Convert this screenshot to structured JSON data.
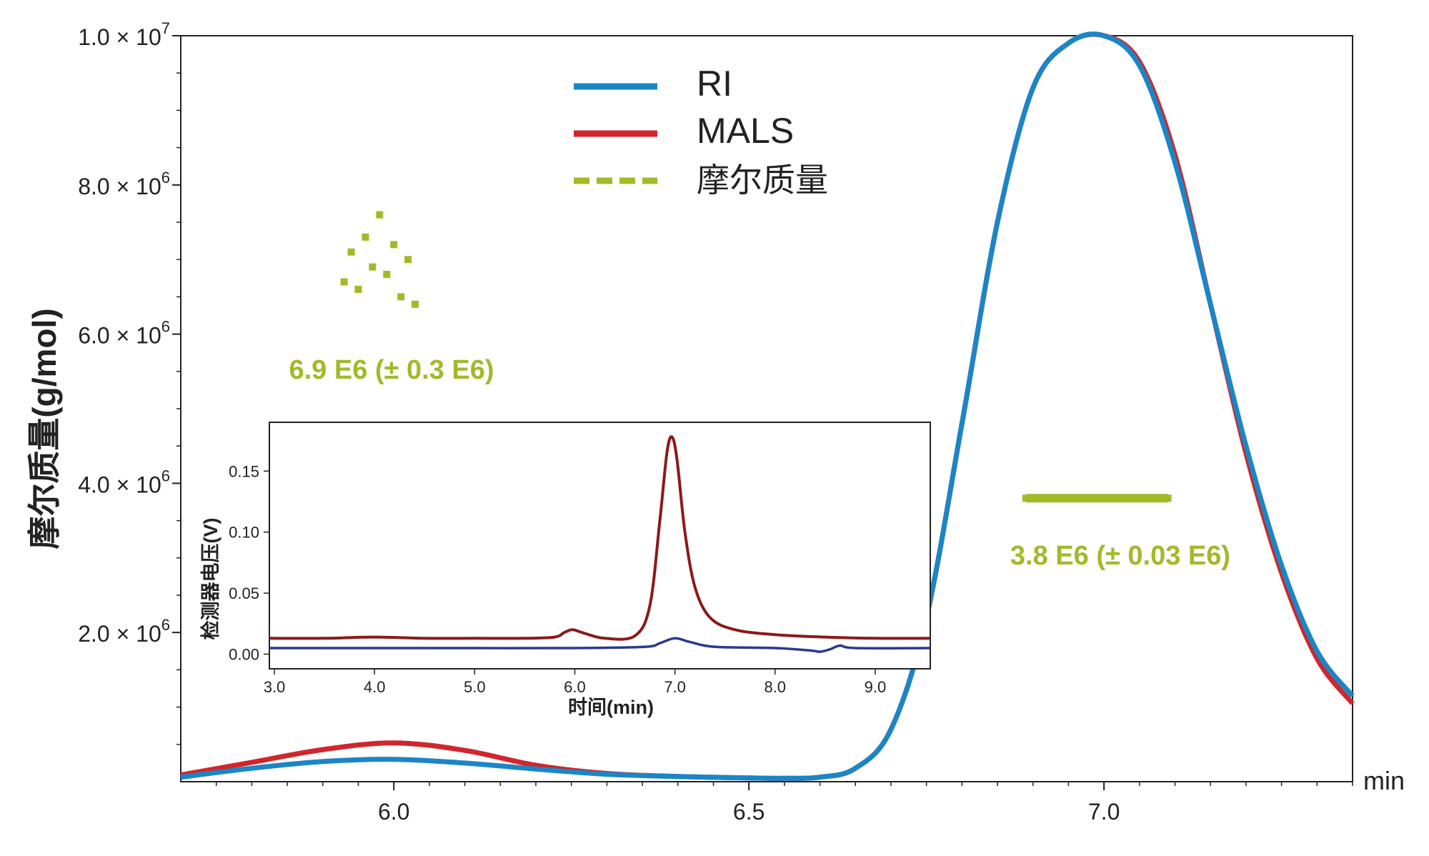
{
  "chart_data": [
    {
      "type": "line",
      "ylabel": "摩尔质量(g/mol)",
      "xunit": "min",
      "xlim": [
        5.7,
        7.35
      ],
      "ylim": [
        0,
        10000000
      ],
      "x_ticks": [
        {
          "value": 6.0,
          "label": "6.0"
        },
        {
          "value": 6.5,
          "label": "6.5"
        },
        {
          "value": 7.0,
          "label": "7.0"
        }
      ],
      "y_ticks": [
        {
          "value": 2000000,
          "mantissa": "2.0",
          "times": "×",
          "base": "10",
          "exp": "6"
        },
        {
          "value": 4000000,
          "mantissa": "4.0",
          "times": "×",
          "base": "10",
          "exp": "6"
        },
        {
          "value": 6000000,
          "mantissa": "6.0",
          "times": "×",
          "base": "10",
          "exp": "6"
        },
        {
          "value": 8000000,
          "mantissa": "8.0",
          "times": "×",
          "base": "10",
          "exp": "6"
        },
        {
          "value": 10000000,
          "mantissa": "1.0",
          "times": "×",
          "base": "10",
          "exp": "7"
        }
      ],
      "legend": [
        {
          "name": "RI",
          "color": "#1b86c6",
          "style": "solid"
        },
        {
          "name": "MALS",
          "color": "#d0262b",
          "style": "solid"
        },
        {
          "name": "摩尔质量",
          "color": "#a3b92a",
          "style": "dashed"
        }
      ],
      "series": [
        {
          "name": "RI",
          "color": "#1b86c6",
          "x": [
            5.7,
            5.8,
            5.9,
            6.0,
            6.1,
            6.2,
            6.3,
            6.4,
            6.5,
            6.55,
            6.6,
            6.65,
            6.7,
            6.75,
            6.8,
            6.85,
            6.9,
            6.95,
            7.0,
            7.05,
            7.1,
            7.15,
            7.2,
            7.25,
            7.3,
            7.35
          ],
          "y": [
            60000,
            180000,
            270000,
            300000,
            250000,
            170000,
            100000,
            70000,
            50000,
            45000,
            60000,
            180000,
            700000,
            2200000,
            4800000,
            7500000,
            9300000,
            9900000,
            10000000,
            9600000,
            8300000,
            6400000,
            4500000,
            2900000,
            1750000,
            1150000
          ]
        },
        {
          "name": "MALS",
          "color": "#d0262b",
          "x": [
            5.7,
            5.8,
            5.9,
            6.0,
            6.1,
            6.2,
            6.3,
            6.4,
            6.5,
            6.55,
            6.6,
            6.65,
            6.7,
            6.75,
            6.8,
            6.85,
            6.9,
            6.95,
            7.0,
            7.05,
            7.1,
            7.15,
            7.2,
            7.25,
            7.3,
            7.35
          ],
          "y": [
            90000,
            260000,
            430000,
            520000,
            420000,
            220000,
            110000,
            70000,
            50000,
            45000,
            60000,
            180000,
            700000,
            2200000,
            4800000,
            7500000,
            9300000,
            9900000,
            10000000,
            9650000,
            8400000,
            6400000,
            4400000,
            2800000,
            1650000,
            1050000
          ]
        }
      ],
      "molar_mass_points": [
        {
          "x": [
            5.93,
            5.94,
            5.95,
            5.96,
            5.97,
            5.98,
            5.99,
            6.0,
            6.01,
            6.02,
            6.03
          ],
          "y": [
            6700000.0,
            7100000.0,
            6600000.0,
            7300000.0,
            6900000.0,
            7600000.0,
            6800000.0,
            7200000.0,
            6500000.0,
            7000000.0,
            6400000.0
          ]
        },
        {
          "x": [
            6.89,
            6.94,
            6.99,
            7.04,
            7.09
          ],
          "y": [
            3800000.0,
            3800000.0,
            3800000.0,
            3800000.0,
            3800000.0
          ]
        }
      ],
      "annotations": [
        {
          "text": "6.9 E6 (± 0.3 E6)",
          "x": 5.95,
          "y": 5600000
        },
        {
          "text": "3.8 E6 (± 0.03 E6)",
          "x": 7.02,
          "y": 3000000
        }
      ]
    },
    {
      "type": "line",
      "xlabel": "时间(min)",
      "ylabel": "检测器电压(V)",
      "xlim": [
        2.95,
        9.55
      ],
      "ylim": [
        -0.012,
        0.19
      ],
      "x_ticks": [
        "3.0",
        "4.0",
        "5.0",
        "6.0",
        "7.0",
        "8.0",
        "9.0"
      ],
      "y_ticks": [
        "0.00",
        "0.05",
        "0.10",
        "0.15"
      ],
      "series": [
        {
          "color": "#8b1a1a",
          "x": [
            2.95,
            3.5,
            4.0,
            4.5,
            5.0,
            5.5,
            5.8,
            5.9,
            5.98,
            6.1,
            6.3,
            6.6,
            6.75,
            6.85,
            6.92,
            6.97,
            7.02,
            7.1,
            7.2,
            7.35,
            7.6,
            8.0,
            8.5,
            9.0,
            9.55
          ],
          "y": [
            0.013,
            0.013,
            0.014,
            0.013,
            0.013,
            0.013,
            0.014,
            0.018,
            0.02,
            0.017,
            0.013,
            0.015,
            0.04,
            0.11,
            0.165,
            0.178,
            0.16,
            0.1,
            0.055,
            0.03,
            0.02,
            0.016,
            0.014,
            0.013,
            0.013
          ]
        },
        {
          "color": "#2a3a8f",
          "x": [
            2.95,
            4.0,
            5.0,
            6.0,
            6.7,
            6.85,
            7.0,
            7.15,
            7.4,
            8.0,
            8.35,
            8.45,
            8.55,
            8.65,
            8.8,
            9.55
          ],
          "y": [
            0.005,
            0.005,
            0.005,
            0.005,
            0.006,
            0.009,
            0.013,
            0.01,
            0.006,
            0.005,
            0.003,
            0.002,
            0.004,
            0.007,
            0.005,
            0.005
          ]
        }
      ]
    }
  ]
}
